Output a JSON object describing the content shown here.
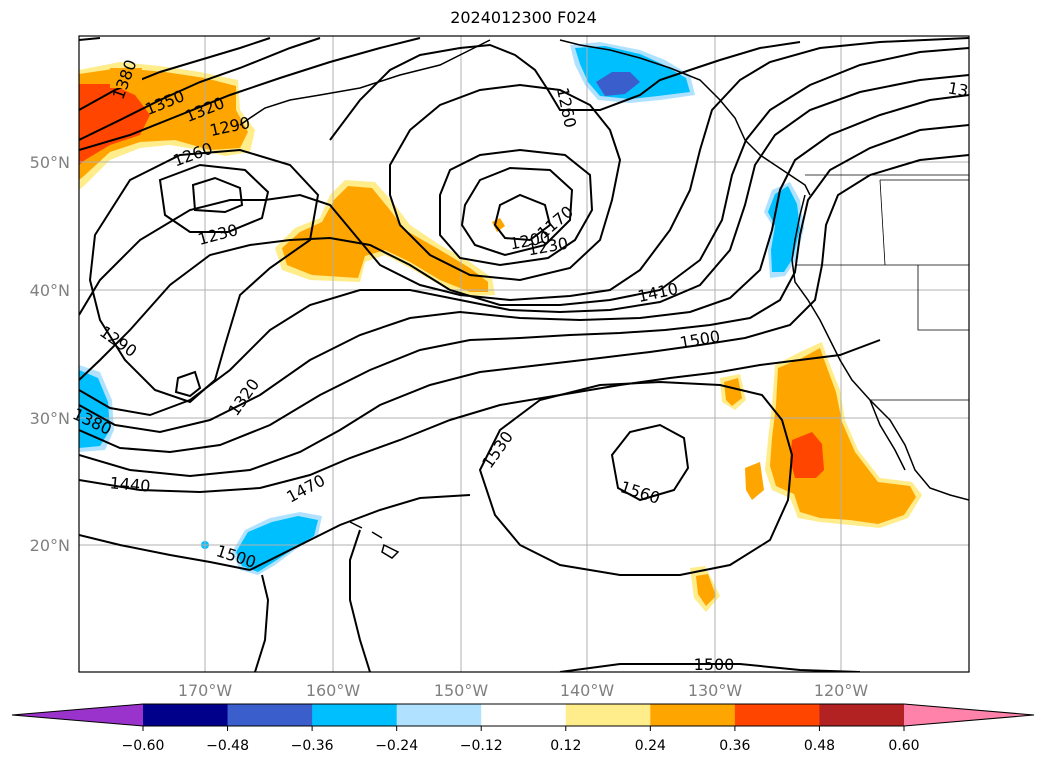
{
  "title": "2024012300 F024",
  "map": {
    "lat_labels": [
      "50°N",
      "40°N",
      "30°N",
      "20°N"
    ],
    "lon_labels": [
      "170°W",
      "160°W",
      "150°W",
      "140°W",
      "130°W",
      "120°W"
    ],
    "contour_labels": [
      "1380",
      "1350",
      "1320",
      "1290",
      "1260",
      "1230",
      "1260",
      "1170",
      "1200",
      "1230",
      "13",
      "1410",
      "1500",
      "1290",
      "1320",
      "1380",
      "1530",
      "1440",
      "1470",
      "1560",
      "1500",
      "1500"
    ]
  },
  "colorbar": {
    "ticks": [
      "−0.60",
      "−0.48",
      "−0.36",
      "−0.24",
      "−0.12",
      "0.12",
      "0.24",
      "0.36",
      "0.48",
      "0.60"
    ],
    "colors": [
      "#9a33cc",
      "#00008b",
      "#3a5fcd",
      "#00bfff",
      "#b0e2ff",
      "#ffffff",
      "#ffec8b",
      "#ffa500",
      "#ff4500",
      "#b22222",
      "#ff82ab"
    ]
  }
}
